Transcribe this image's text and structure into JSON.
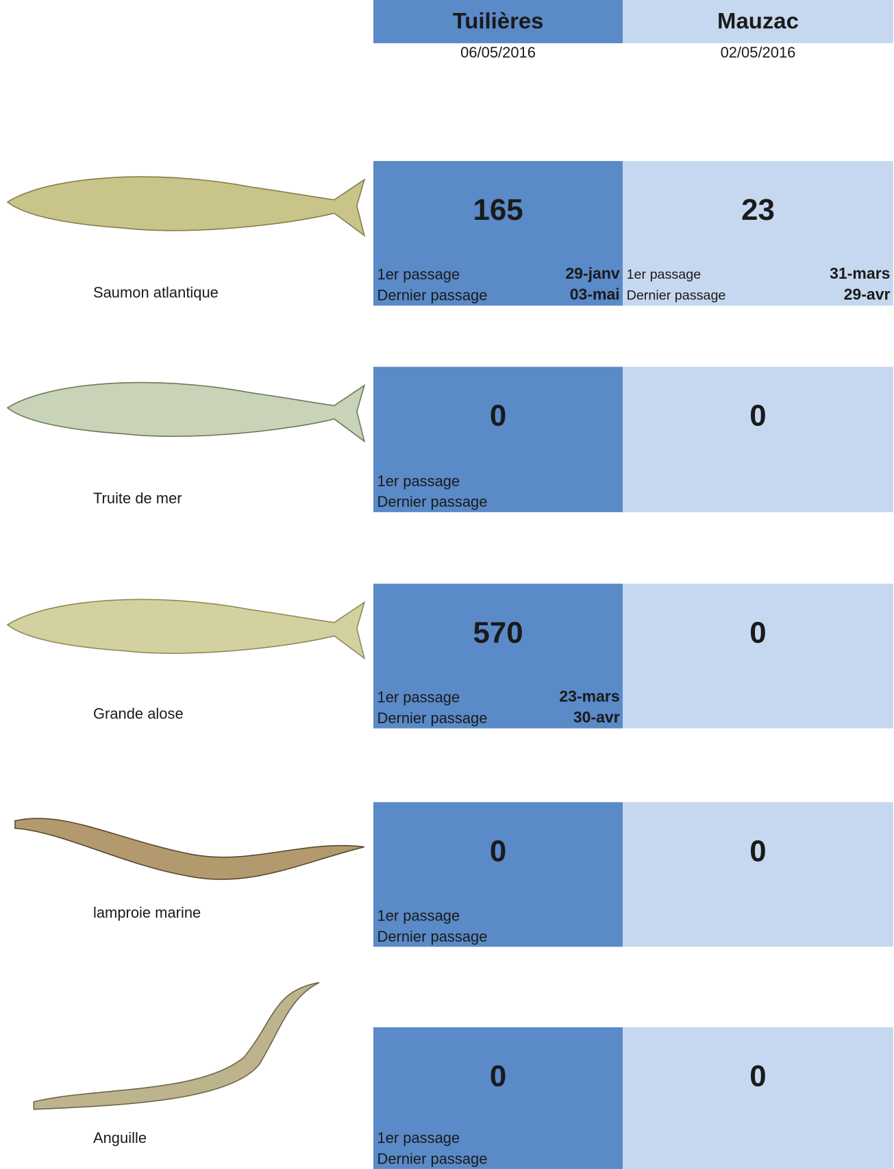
{
  "header": {
    "columns": [
      {
        "name": "Tuilières",
        "date": "06/05/2016"
      },
      {
        "name": "Mauzac",
        "date": "02/05/2016"
      }
    ]
  },
  "labels": {
    "first": "1er passage",
    "last": "Dernier passage"
  },
  "rows": [
    {
      "species": "Saumon atlantique",
      "cells": [
        {
          "count": "165",
          "first": "29-janv",
          "last": "03-mai"
        },
        {
          "count": "23",
          "first": "31-mars",
          "last": "29-avr"
        }
      ]
    },
    {
      "species": "Truite de mer",
      "cells": [
        {
          "count": "0"
        },
        {
          "count": "0"
        }
      ]
    },
    {
      "species": "Grande alose",
      "cells": [
        {
          "count": "570",
          "first": "23-mars",
          "last": "30-avr"
        },
        {
          "count": "0"
        }
      ]
    },
    {
      "species": "lamproie marine",
      "cells": [
        {
          "count": "0"
        },
        {
          "count": "0"
        }
      ]
    },
    {
      "species": "Anguille",
      "cells": [
        {
          "count": "0"
        },
        {
          "count": "0"
        }
      ]
    }
  ]
}
